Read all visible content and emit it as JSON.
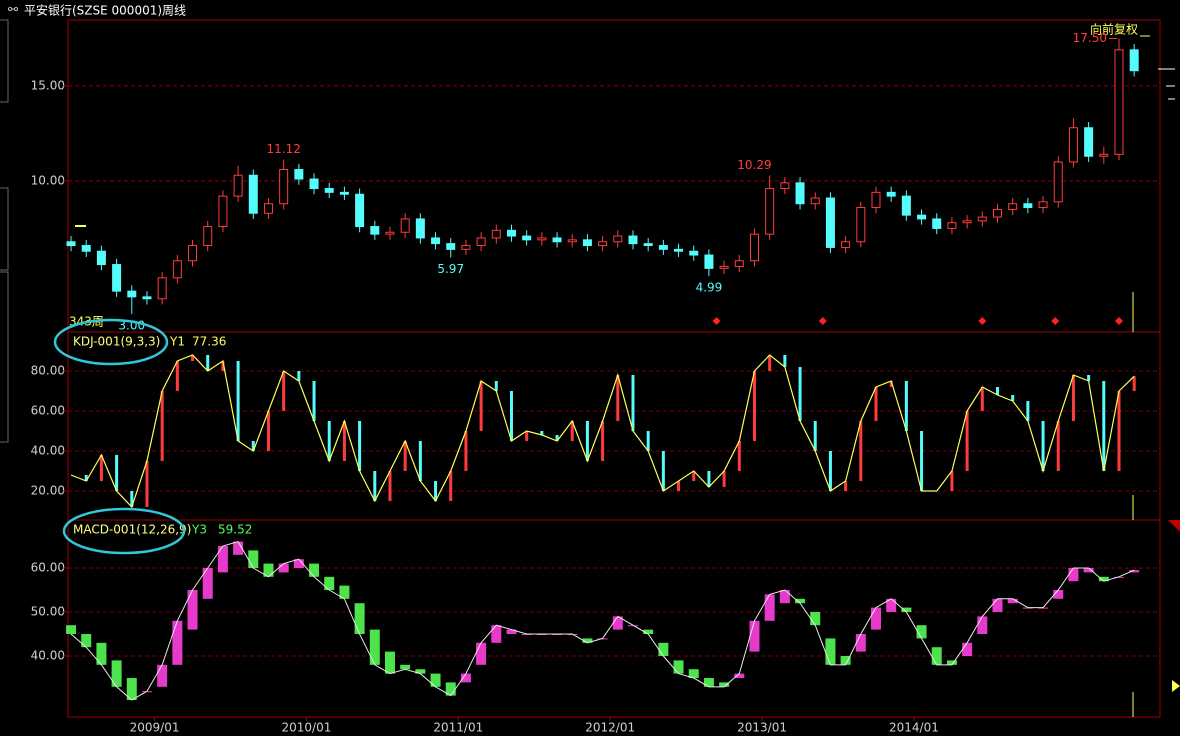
{
  "chart_data": [
    {
      "type": "candlestick",
      "title": "平安银行(SZSE 000001)周线",
      "subtitle": "向前复权",
      "period_label": "343周",
      "up_color": "#ff3c3c",
      "down_color": "#54fcfc",
      "x": [
        2008.45,
        2008.55,
        2008.65,
        2008.75,
        2008.85,
        2008.95,
        2009.05,
        2009.15,
        2009.25,
        2009.35,
        2009.45,
        2009.55,
        2009.65,
        2009.75,
        2009.85,
        2009.95,
        2010.05,
        2010.15,
        2010.25,
        2010.35,
        2010.45,
        2010.55,
        2010.65,
        2010.75,
        2010.85,
        2010.95,
        2011.05,
        2011.15,
        2011.25,
        2011.35,
        2011.45,
        2011.55,
        2011.65,
        2011.75,
        2011.85,
        2011.95,
        2012.05,
        2012.15,
        2012.25,
        2012.35,
        2012.45,
        2012.55,
        2012.65,
        2012.75,
        2012.85,
        2012.95,
        2013.05,
        2013.15,
        2013.25,
        2013.35,
        2013.45,
        2013.55,
        2013.65,
        2013.75,
        2013.85,
        2013.95,
        2014.05,
        2014.15,
        2014.25,
        2014.35,
        2014.45,
        2014.55,
        2014.65,
        2014.75,
        2014.85,
        2014.95,
        2015.05,
        2015.15,
        2015.25,
        2015.35,
        2015.45
      ],
      "open": [
        6.8,
        6.6,
        6.3,
        5.6,
        4.2,
        3.9,
        3.8,
        4.9,
        5.8,
        6.6,
        7.6,
        9.2,
        10.3,
        8.3,
        8.8,
        10.6,
        10.1,
        9.6,
        9.4,
        9.3,
        7.6,
        7.2,
        7.3,
        8.0,
        7.0,
        6.7,
        6.4,
        6.6,
        7.0,
        7.4,
        7.1,
        6.9,
        7.0,
        6.8,
        6.9,
        6.6,
        6.8,
        7.1,
        6.7,
        6.6,
        6.4,
        6.3,
        6.1,
        5.4,
        5.5,
        5.8,
        7.2,
        9.6,
        9.9,
        8.8,
        9.1,
        6.5,
        6.8,
        8.6,
        9.4,
        9.2,
        8.2,
        8.0,
        7.5,
        7.8,
        7.9,
        8.1,
        8.5,
        8.8,
        8.6,
        8.9,
        11.0,
        12.8,
        11.3,
        11.4,
        16.9
      ],
      "close": [
        6.6,
        6.3,
        5.6,
        4.2,
        3.9,
        3.8,
        4.9,
        5.8,
        6.6,
        7.6,
        9.2,
        10.3,
        8.3,
        8.8,
        10.6,
        10.1,
        9.6,
        9.4,
        9.3,
        7.6,
        7.2,
        7.3,
        8.0,
        7.0,
        6.7,
        6.4,
        6.6,
        7.0,
        7.4,
        7.1,
        6.9,
        7.0,
        6.8,
        6.9,
        6.6,
        6.8,
        7.1,
        6.7,
        6.6,
        6.4,
        6.3,
        6.1,
        5.4,
        5.5,
        5.8,
        7.2,
        9.6,
        9.9,
        8.8,
        9.1,
        6.5,
        6.8,
        8.6,
        9.4,
        9.2,
        8.2,
        8.0,
        7.5,
        7.8,
        7.9,
        8.1,
        8.5,
        8.8,
        8.6,
        8.9,
        11.0,
        12.8,
        11.3,
        11.4,
        16.9,
        15.8
      ],
      "high": [
        7.1,
        6.9,
        6.6,
        5.9,
        4.5,
        4.2,
        5.2,
        6.1,
        6.9,
        7.9,
        9.5,
        10.8,
        10.6,
        9.1,
        11.12,
        10.9,
        10.4,
        9.9,
        9.7,
        9.6,
        7.9,
        7.6,
        8.3,
        8.3,
        7.3,
        7.0,
        6.9,
        7.3,
        7.7,
        7.7,
        7.4,
        7.3,
        7.3,
        7.2,
        7.2,
        7.1,
        7.4,
        7.4,
        7.0,
        6.9,
        6.7,
        6.6,
        6.4,
        5.8,
        6.1,
        7.5,
        10.29,
        10.2,
        10.2,
        9.4,
        9.4,
        7.1,
        8.9,
        9.7,
        9.7,
        9.5,
        8.5,
        8.3,
        8.1,
        8.2,
        8.4,
        8.8,
        9.1,
        9.1,
        9.2,
        11.3,
        13.3,
        13.1,
        11.8,
        17.5,
        17.2
      ],
      "low": [
        6.3,
        6.0,
        5.3,
        3.9,
        3.0,
        3.5,
        3.5,
        4.6,
        5.5,
        6.3,
        7.3,
        8.9,
        8.0,
        8.0,
        8.5,
        9.8,
        9.3,
        9.1,
        9.0,
        7.3,
        6.9,
        6.9,
        7.0,
        6.7,
        6.4,
        5.97,
        6.1,
        6.3,
        6.7,
        6.8,
        6.6,
        6.6,
        6.5,
        6.5,
        6.3,
        6.3,
        6.5,
        6.4,
        6.3,
        6.1,
        6.0,
        5.8,
        4.99,
        5.1,
        5.2,
        5.5,
        6.9,
        9.3,
        8.5,
        8.5,
        6.2,
        6.2,
        6.5,
        8.3,
        8.9,
        7.9,
        7.7,
        7.2,
        7.2,
        7.5,
        7.6,
        7.8,
        8.2,
        8.3,
        8.3,
        8.6,
        10.7,
        11.0,
        10.9,
        11.1,
        15.5
      ],
      "annotations": [
        {
          "x": 2009.85,
          "value": 11.12,
          "label": "11.12",
          "position": "above",
          "color": "#ff3c3c"
        },
        {
          "x": 2012.95,
          "value": 10.29,
          "label": "10.29",
          "position": "above",
          "color": "#ff3c3c"
        },
        {
          "x": 2015.35,
          "value": 17.5,
          "label": "17.50",
          "position": "left",
          "color": "#ff3c3c"
        },
        {
          "x": 2010.95,
          "value": 5.97,
          "label": "5.97",
          "position": "below",
          "color": "#54fcfc"
        },
        {
          "x": 2012.65,
          "value": 4.99,
          "label": "4.99",
          "position": "below",
          "color": "#54fcfc"
        },
        {
          "x": 2008.85,
          "value": 3.0,
          "label": "3.00",
          "position": "below",
          "color": "#54fcfc"
        }
      ],
      "signals": [
        2012.7,
        2013.4,
        2014.45,
        2014.93,
        2015.35
      ],
      "xlim": [
        2008.43,
        2015.62
      ],
      "ylim": [
        2.05,
        18.47
      ],
      "yticks": [
        {
          "value": 10,
          "label": "10.00"
        },
        {
          "value": 15,
          "label": "15.00"
        }
      ],
      "grid": true
    },
    {
      "type": "kdj",
      "title": "KDJ-001(9,3,3)",
      "up_color": "#ff3c3c",
      "down_color": "#54fcfc",
      "series": [
        {
          "name": "Y1",
          "color": "#ffff54",
          "values": [
            28,
            25,
            38,
            20,
            12,
            35,
            70,
            85,
            88,
            80,
            85,
            45,
            40,
            60,
            80,
            75,
            55,
            35,
            55,
            30,
            15,
            30,
            45,
            25,
            15,
            30,
            50,
            75,
            70,
            45,
            50,
            48,
            45,
            55,
            35,
            55,
            78,
            50,
            40,
            20,
            25,
            30,
            22,
            30,
            45,
            80,
            88,
            82,
            55,
            40,
            20,
            25,
            55,
            72,
            75,
            50,
            20,
            20,
            30,
            60,
            72,
            68,
            65,
            55,
            30,
            55,
            78,
            75,
            30,
            70,
            77.36
          ]
        }
      ],
      "xlim": [
        2008.43,
        2015.62
      ],
      "ylim": [
        5.5,
        99.5
      ],
      "yticks": [
        {
          "value": 20,
          "label": "20.00"
        },
        {
          "value": 40,
          "label": "40.00"
        },
        {
          "value": 60,
          "label": "60.00"
        },
        {
          "value": 80,
          "label": "80.00"
        }
      ],
      "grid": true
    },
    {
      "type": "macd",
      "title": "MACD-001(12,26,9)",
      "up_color": "#ff40e0",
      "down_color": "#54fc54",
      "series": [
        {
          "name": "Y3",
          "color": "#54fc54",
          "values": [
            45,
            42,
            38,
            33,
            30,
            32,
            38,
            48,
            55,
            60,
            65,
            66,
            60,
            58,
            61,
            62,
            58,
            55,
            53,
            45,
            38,
            36,
            37,
            36,
            33,
            31,
            36,
            43,
            47,
            46,
            45,
            45,
            45,
            45,
            43,
            44,
            49,
            47,
            45,
            40,
            36,
            35,
            33,
            33,
            36,
            48,
            54,
            55,
            52,
            47,
            38,
            38,
            45,
            51,
            53,
            50,
            44,
            38,
            38,
            43,
            49,
            53,
            53,
            51,
            51,
            55,
            60,
            60,
            57,
            58,
            59.52
          ]
        }
      ],
      "signal": [
        47,
        45,
        43,
        39,
        35,
        32,
        33,
        38,
        46,
        53,
        59,
        63,
        64,
        61,
        59,
        60,
        61,
        58,
        56,
        52,
        46,
        41,
        38,
        37,
        36,
        34,
        34,
        38,
        43,
        45,
        45,
        45,
        45,
        45,
        44,
        44,
        46,
        47,
        46,
        43,
        39,
        37,
        35,
        34,
        35,
        41,
        48,
        52,
        53,
        50,
        44,
        40,
        41,
        46,
        50,
        51,
        47,
        42,
        39,
        40,
        45,
        50,
        52,
        51,
        51,
        53,
        57,
        59,
        58,
        58,
        59
      ],
      "xlim": [
        2008.43,
        2015.62
      ],
      "ylim": [
        26.14,
        70.91
      ],
      "yticks": [
        {
          "value": 40,
          "label": "40.00"
        },
        {
          "value": 50,
          "label": "50.00"
        },
        {
          "value": 60,
          "label": "60.00"
        }
      ],
      "grid": true,
      "xticks": [
        {
          "value": 2009,
          "label": "2009/01"
        },
        {
          "value": 2010,
          "label": "2010/01"
        },
        {
          "value": 2011,
          "label": "2011/01"
        },
        {
          "value": 2012,
          "label": "2012/01"
        },
        {
          "value": 2013,
          "label": "2013/01"
        },
        {
          "value": 2014,
          "label": "2014/01"
        }
      ]
    }
  ]
}
